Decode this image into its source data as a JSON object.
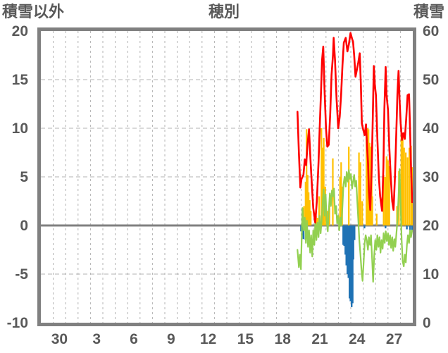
{
  "header": {
    "left_axis_title": "積雪以外",
    "chart_title": "穂別",
    "right_axis_title": "積雪"
  },
  "chart_data": {
    "type": "line+bar",
    "title": "穂別",
    "x_axis": {
      "domain": [
        0,
        30
      ],
      "unit": "day",
      "gridline_every_days": 1,
      "ticks": [
        {
          "t": 1.5,
          "label": "30"
        },
        {
          "t": 4.5,
          "label": "3"
        },
        {
          "t": 7.5,
          "label": "6"
        },
        {
          "t": 10.5,
          "label": "9"
        },
        {
          "t": 13.5,
          "label": "12"
        },
        {
          "t": 16.5,
          "label": "15"
        },
        {
          "t": 19.5,
          "label": "18"
        },
        {
          "t": 22.5,
          "label": "21"
        },
        {
          "t": 25.5,
          "label": "24"
        },
        {
          "t": 28.5,
          "label": "27"
        }
      ]
    },
    "left_axis": {
      "title": "積雪以外",
      "min": -10,
      "max": 20,
      "tick_values": [
        20,
        15,
        10,
        5,
        0,
        -5,
        -10
      ],
      "ticks": [
        "20",
        "15",
        "10",
        "5",
        "0",
        "-5",
        "-10"
      ]
    },
    "right_axis": {
      "title": "積雪",
      "min": 0,
      "max": 60,
      "ticks": [
        "60",
        "50",
        "40",
        "30",
        "20",
        "10",
        "0"
      ],
      "note": "no visible snow-depth series (stays at 0)"
    },
    "grid": {
      "h_dashed_at": [
        15,
        10,
        5,
        -5
      ],
      "zero_line_at": 0
    },
    "colors": {
      "red": "#ff0000",
      "green": "#92d050",
      "yellow": "#ffc000",
      "blue": "#1f72b5",
      "frame": "#808080",
      "grid": "#b3b3b3",
      "text": "#595959"
    },
    "series": [
      {
        "name": "red-line",
        "type": "line",
        "axis": "left",
        "color": "#ff0000",
        "points": [
          [
            20.7,
            11.7
          ],
          [
            20.81,
            7.5
          ],
          [
            20.93,
            3.9
          ],
          [
            21.03,
            4.8
          ],
          [
            21.18,
            5.2
          ],
          [
            21.29,
            6.8
          ],
          [
            21.4,
            6.2
          ],
          [
            21.52,
            8.5
          ],
          [
            21.63,
            9.9
          ],
          [
            21.74,
            7.0
          ],
          [
            21.86,
            4.2
          ],
          [
            21.97,
            1.8
          ],
          [
            22.13,
            0.3
          ],
          [
            22.26,
            2.5
          ],
          [
            22.4,
            6.5
          ],
          [
            22.48,
            9.5
          ],
          [
            22.6,
            13.9
          ],
          [
            22.68,
            17.0
          ],
          [
            22.78,
            18.4
          ],
          [
            22.88,
            14.0
          ],
          [
            23.0,
            10.0
          ],
          [
            23.11,
            8.1
          ],
          [
            23.22,
            8.3
          ],
          [
            23.34,
            11.5
          ],
          [
            23.45,
            15.5
          ],
          [
            23.56,
            17.5
          ],
          [
            23.62,
            19.3
          ],
          [
            23.73,
            17.0
          ],
          [
            23.85,
            13.0
          ],
          [
            23.99,
            10.0
          ],
          [
            24.11,
            11.2
          ],
          [
            24.22,
            13.5
          ],
          [
            24.33,
            16.5
          ],
          [
            24.44,
            18.8
          ],
          [
            24.59,
            19.3
          ],
          [
            24.73,
            17.9
          ],
          [
            24.84,
            18.6
          ],
          [
            24.98,
            19.8
          ],
          [
            25.1,
            19.2
          ],
          [
            25.18,
            18.9
          ],
          [
            25.27,
            17.5
          ],
          [
            25.38,
            15.3
          ],
          [
            25.49,
            16.0
          ],
          [
            25.61,
            16.8
          ],
          [
            25.72,
            17.7
          ],
          [
            25.81,
            14.5
          ],
          [
            25.89,
            10.5
          ],
          [
            26.01,
            9.8
          ],
          [
            26.12,
            9.3
          ],
          [
            26.23,
            10.4
          ],
          [
            26.32,
            8.0
          ],
          [
            26.39,
            6.4
          ],
          [
            26.46,
            3.5
          ],
          [
            26.57,
            1.6
          ],
          [
            26.69,
            6.0
          ],
          [
            26.77,
            11.0
          ],
          [
            26.86,
            16.4
          ],
          [
            26.94,
            14.5
          ],
          [
            27.03,
            13.4
          ],
          [
            27.14,
            9.0
          ],
          [
            27.26,
            5.0
          ],
          [
            27.37,
            3.0
          ],
          [
            27.52,
            1.5
          ],
          [
            27.63,
            6.0
          ],
          [
            27.71,
            12.0
          ],
          [
            27.81,
            16.3
          ],
          [
            27.88,
            13.5
          ],
          [
            28.0,
            11.9
          ],
          [
            28.11,
            8.0
          ],
          [
            28.22,
            5.0
          ],
          [
            28.34,
            2.5
          ],
          [
            28.45,
            1.6
          ],
          [
            28.56,
            5.0
          ],
          [
            28.68,
            10.0
          ],
          [
            28.76,
            13.5
          ],
          [
            28.85,
            15.9
          ],
          [
            28.93,
            13.0
          ],
          [
            29.02,
            10.5
          ],
          [
            29.13,
            8.8
          ],
          [
            29.24,
            9.5
          ],
          [
            29.36,
            8.9
          ],
          [
            29.47,
            11.0
          ],
          [
            29.58,
            13.4
          ],
          [
            29.7,
            13.5
          ],
          [
            29.78,
            10.0
          ],
          [
            29.86,
            6.0
          ],
          [
            29.95,
            2.4
          ]
        ]
      },
      {
        "name": "green-line",
        "type": "line",
        "axis": "left",
        "color": "#92d050",
        "points": [
          [
            20.7,
            -2.5
          ],
          [
            20.81,
            -4.3
          ],
          [
            20.89,
            -3.0
          ],
          [
            20.98,
            -4.5
          ],
          [
            21.1,
            1.8
          ],
          [
            21.21,
            -0.5
          ],
          [
            21.29,
            0.8
          ],
          [
            21.38,
            -1.8
          ],
          [
            21.46,
            0.5
          ],
          [
            21.55,
            -2.2
          ],
          [
            21.63,
            -0.5
          ],
          [
            21.72,
            -2.8
          ],
          [
            21.8,
            -1.0
          ],
          [
            21.89,
            -3.2
          ],
          [
            21.97,
            -0.5
          ],
          [
            22.06,
            -2.0
          ],
          [
            22.14,
            0.5
          ],
          [
            22.23,
            -1.5
          ],
          [
            22.31,
            0.3
          ],
          [
            22.4,
            -1.2
          ],
          [
            22.48,
            1.0
          ],
          [
            22.57,
            -0.8
          ],
          [
            22.65,
            0.5
          ],
          [
            22.74,
            2.5
          ],
          [
            22.81,
            3.7
          ],
          [
            22.88,
            1.0
          ],
          [
            22.97,
            3.2
          ],
          [
            23.05,
            0.5
          ],
          [
            23.14,
            -0.6
          ],
          [
            23.22,
            1.5
          ],
          [
            23.31,
            3.3
          ],
          [
            23.39,
            2.0
          ],
          [
            23.48,
            3.6
          ],
          [
            23.56,
            3.0
          ],
          [
            23.65,
            3.8
          ],
          [
            23.73,
            1.2
          ],
          [
            23.82,
            2.0
          ],
          [
            23.9,
            0.2
          ],
          [
            23.99,
            1.0
          ],
          [
            24.07,
            -0.5
          ],
          [
            24.16,
            0.8
          ],
          [
            24.24,
            0.0
          ],
          [
            24.33,
            2.0
          ],
          [
            24.41,
            4.2
          ],
          [
            24.5,
            5.0
          ],
          [
            24.59,
            4.0
          ],
          [
            24.67,
            5.5
          ],
          [
            24.76,
            4.5
          ],
          [
            24.84,
            5.7
          ],
          [
            24.93,
            4.8
          ],
          [
            25.01,
            5.3
          ],
          [
            25.1,
            3.8
          ],
          [
            25.18,
            4.5
          ],
          [
            25.27,
            5.2
          ],
          [
            25.35,
            4.0
          ],
          [
            25.44,
            4.6
          ],
          [
            25.52,
            2.5
          ],
          [
            25.61,
            0.5
          ],
          [
            25.69,
            -1.5
          ],
          [
            25.78,
            -3.0
          ],
          [
            25.86,
            -4.5
          ],
          [
            25.95,
            -5.7
          ],
          [
            26.03,
            -4.0
          ],
          [
            26.12,
            -1.8
          ],
          [
            26.2,
            -1.0
          ],
          [
            26.29,
            -1.5
          ],
          [
            26.38,
            -2.5
          ],
          [
            26.46,
            -1.2
          ],
          [
            26.55,
            -2.0
          ],
          [
            26.63,
            -1.0
          ],
          [
            26.72,
            -3.5
          ],
          [
            26.8,
            -5.8
          ],
          [
            26.89,
            -3.0
          ],
          [
            26.97,
            -1.5
          ],
          [
            27.06,
            -2.5
          ],
          [
            27.14,
            -1.0
          ],
          [
            27.23,
            -2.2
          ],
          [
            27.31,
            -1.2
          ],
          [
            27.4,
            -2.8
          ],
          [
            27.48,
            -1.5
          ],
          [
            27.57,
            -2.4
          ],
          [
            27.65,
            -0.8
          ],
          [
            27.74,
            -1.8
          ],
          [
            27.82,
            -0.6
          ],
          [
            27.91,
            -1.6
          ],
          [
            28.0,
            -0.8
          ],
          [
            28.08,
            -2.0
          ],
          [
            28.17,
            -1.0
          ],
          [
            28.25,
            -2.3
          ],
          [
            28.34,
            -1.2
          ],
          [
            28.42,
            -2.6
          ],
          [
            28.51,
            -1.4
          ],
          [
            28.59,
            -2.2
          ],
          [
            28.68,
            -0.8
          ],
          [
            28.76,
            0.5
          ],
          [
            28.85,
            3.0
          ],
          [
            28.93,
            5.8
          ],
          [
            29.02,
            2.0
          ],
          [
            29.1,
            -1.5
          ],
          [
            29.19,
            -3.7
          ],
          [
            29.27,
            -4.2
          ],
          [
            29.36,
            -3.0
          ],
          [
            29.44,
            -3.8
          ],
          [
            29.53,
            -2.0
          ],
          [
            29.61,
            -1.0
          ],
          [
            29.7,
            -1.8
          ],
          [
            29.78,
            -0.5
          ],
          [
            29.86,
            -1.2
          ],
          [
            29.95,
            -0.5
          ]
        ]
      },
      {
        "name": "yellow-bars",
        "type": "bar",
        "axis": "left",
        "color": "#ffc000",
        "points": [
          [
            21.23,
            2.0
          ],
          [
            21.35,
            4.5
          ],
          [
            21.43,
            9.9
          ],
          [
            21.52,
            5.2
          ],
          [
            21.6,
            3.4
          ],
          [
            21.69,
            2.6
          ],
          [
            21.77,
            1.5
          ],
          [
            22.2,
            1.0
          ],
          [
            22.31,
            0.8
          ],
          [
            22.45,
            3.0
          ],
          [
            22.63,
            10.0
          ],
          [
            22.71,
            8.0
          ],
          [
            22.82,
            9.0
          ],
          [
            22.94,
            4.0
          ],
          [
            23.11,
            1.5
          ],
          [
            23.28,
            2.0
          ],
          [
            23.55,
            6.9
          ],
          [
            24.13,
            5.0
          ],
          [
            24.22,
            6.5
          ],
          [
            24.3,
            4.0
          ],
          [
            24.84,
            8.1
          ],
          [
            25.66,
            7.5
          ],
          [
            25.78,
            6.5
          ],
          [
            25.92,
            2.5
          ],
          [
            26.26,
            9.8
          ],
          [
            26.35,
            10.0
          ],
          [
            26.43,
            9.9
          ],
          [
            26.52,
            8.5
          ],
          [
            26.6,
            8.1
          ],
          [
            26.69,
            5.9
          ],
          [
            26.74,
            3.0
          ],
          [
            27.09,
            1.2
          ],
          [
            27.65,
            5.2
          ],
          [
            27.77,
            5.0
          ],
          [
            27.88,
            7.1
          ],
          [
            28.0,
            6.7
          ],
          [
            28.11,
            6.1
          ],
          [
            28.73,
            2.0
          ],
          [
            28.88,
            5.6
          ],
          [
            29.08,
            9.9
          ],
          [
            29.19,
            9.5
          ],
          [
            29.3,
            8.0
          ],
          [
            29.44,
            7.5
          ],
          [
            29.58,
            7.0
          ],
          [
            29.72,
            8.0
          ],
          [
            29.86,
            8.2
          ],
          [
            29.95,
            6.0
          ]
        ]
      },
      {
        "name": "blue-bars",
        "type": "bar",
        "axis": "left",
        "color": "#1f72b5",
        "points": [
          [
            20.99,
            -0.6
          ],
          [
            21.06,
            -1.0
          ],
          [
            21.18,
            -1.4
          ],
          [
            21.35,
            -1.5
          ],
          [
            24.39,
            -2.0
          ],
          [
            24.47,
            -2.1
          ],
          [
            24.56,
            -3.0
          ],
          [
            24.64,
            -4.1
          ],
          [
            24.73,
            -5.0
          ],
          [
            24.81,
            -5.4
          ],
          [
            24.9,
            -7.5
          ],
          [
            24.98,
            -7.8
          ],
          [
            25.07,
            -8.4
          ],
          [
            25.15,
            -8.0
          ],
          [
            25.21,
            -3.5
          ],
          [
            25.3,
            -1.5
          ],
          [
            26.1,
            -0.3
          ],
          [
            27.8,
            -0.3
          ],
          [
            29.52,
            -0.4
          ],
          [
            29.77,
            -0.5
          ],
          [
            29.94,
            -0.6
          ]
        ]
      }
    ]
  }
}
